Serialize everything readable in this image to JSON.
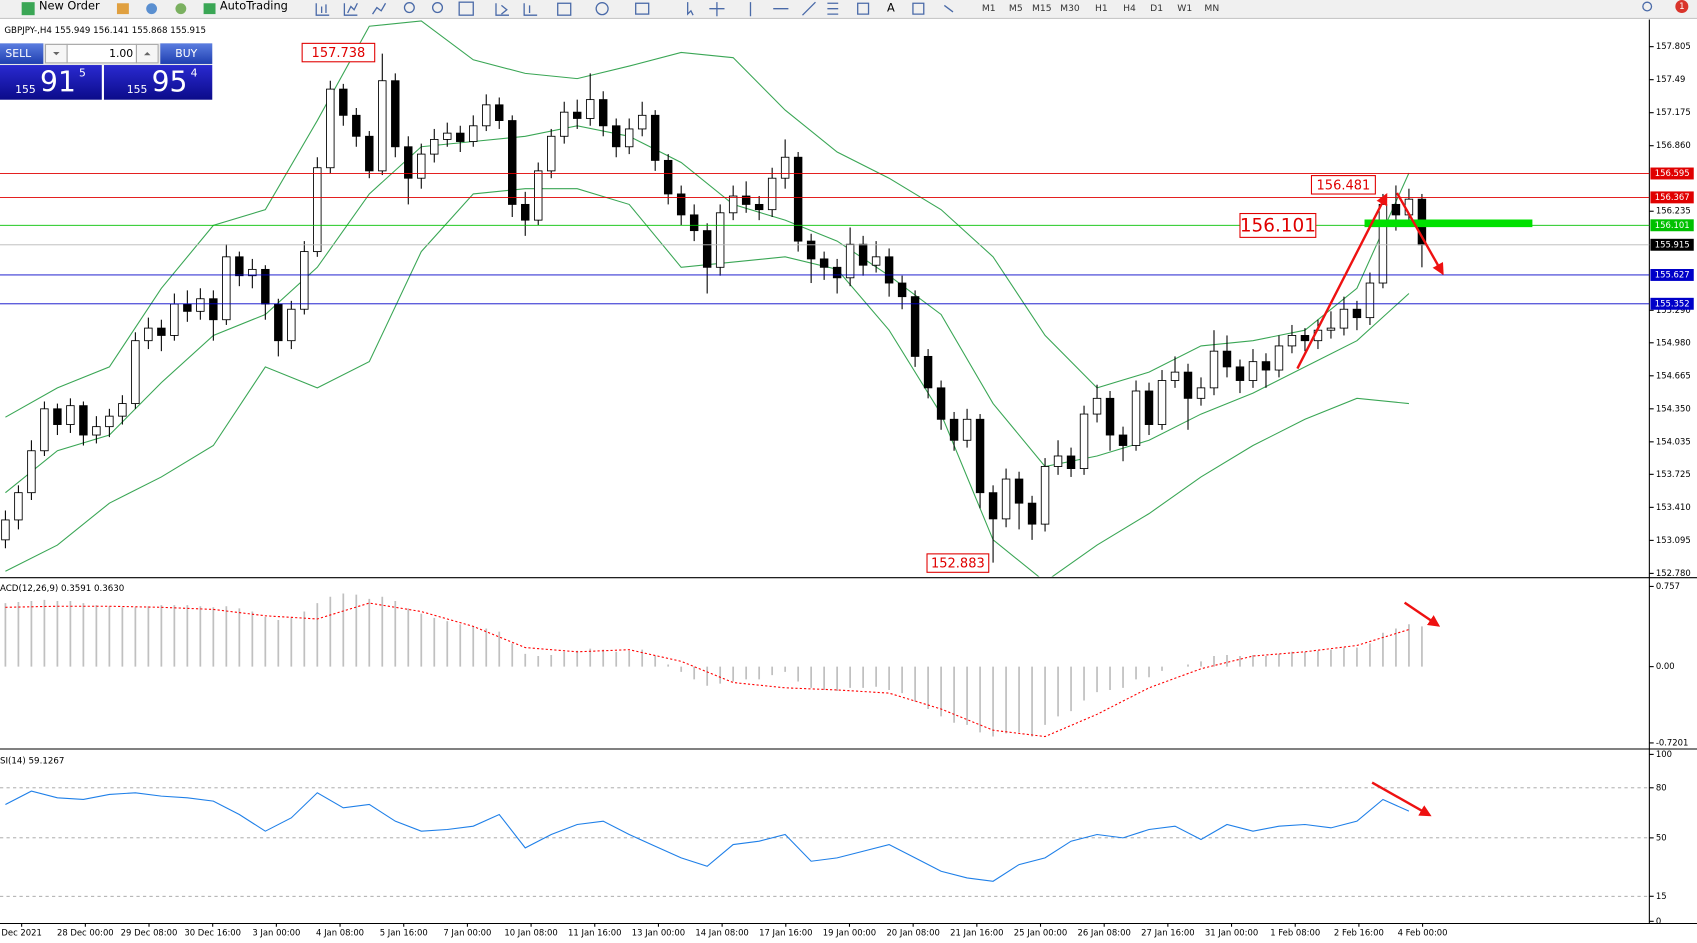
{
  "toolbar": {
    "new_order": "New Order",
    "autotrading": "AutoTrading",
    "text_tool": "A",
    "timeframes": [
      "M1",
      "M5",
      "M15",
      "M30",
      "H1",
      "H4",
      "D1",
      "W1",
      "MN"
    ],
    "notification_count": "1"
  },
  "trade_panel": {
    "sell": "SELL",
    "buy": "BUY",
    "lots": "1.00",
    "bid": {
      "big_figure": "155",
      "pips": "91",
      "fraction": "5"
    },
    "ask": {
      "big_figure": "155",
      "pips": "95",
      "fraction": "4"
    }
  },
  "chart": {
    "header": "GBPJPY-,H4 155.949 156.141 155.868 155.915",
    "ylim": [
      152.749,
      158.064
    ],
    "yticks": [
      157.805,
      157.49,
      157.175,
      {
        "value": 156.86,
        "label": "156.860"
      },
      156.235,
      {
        "value": 155.29,
        "label": "155.290"
      },
      {
        "value": 154.98,
        "label": "154.980"
      },
      154.665,
      {
        "value": 154.35,
        "label": "154.350"
      },
      154.035,
      153.725,
      {
        "value": 153.41,
        "label": "153.410"
      },
      153.095,
      {
        "value": 152.78,
        "label": "152.780"
      }
    ],
    "bull_color": "#ffffff",
    "bear_color": "#000000",
    "candles": {
      "open": [
        153.1,
        153.29,
        153.55,
        153.95,
        154.35,
        154.2,
        154.38,
        154.1,
        154.18,
        154.28,
        154.4,
        155.0,
        155.12,
        155.05,
        155.35,
        155.28,
        155.4,
        155.2,
        155.8,
        155.62,
        155.68,
        155.35,
        155.0,
        155.3,
        155.85,
        156.65,
        157.4,
        157.15,
        156.95,
        156.62,
        157.48,
        156.85,
        156.55,
        156.78,
        156.92,
        156.98,
        156.9,
        157.05,
        157.25,
        157.1,
        156.3,
        156.15,
        156.62,
        156.95,
        157.18,
        157.12,
        157.3,
        157.05,
        156.85,
        157.02,
        157.15,
        156.72,
        156.4,
        156.2,
        156.05,
        155.7,
        156.22,
        156.38,
        156.3,
        156.25,
        156.55,
        156.75,
        155.95,
        155.78,
        155.7,
        155.6,
        155.92,
        155.72,
        155.8,
        155.55,
        155.42,
        154.85,
        154.55,
        154.25,
        154.05,
        154.25,
        153.55,
        153.3,
        153.68,
        153.45,
        153.25,
        153.8,
        153.9,
        153.78,
        154.3,
        154.45,
        154.1,
        154.0,
        154.52,
        154.2,
        154.62,
        154.7,
        154.45,
        154.55,
        154.9,
        154.75,
        154.62,
        154.8,
        154.72,
        154.95,
        155.05,
        155.0,
        155.1,
        155.12,
        155.3,
        155.22,
        155.55,
        156.3,
        156.2,
        156.35
      ],
      "high": [
        153.38,
        153.62,
        154.05,
        154.42,
        154.4,
        154.45,
        154.42,
        154.28,
        154.35,
        154.48,
        155.08,
        155.22,
        155.2,
        155.45,
        155.48,
        155.5,
        155.48,
        155.92,
        155.85,
        155.78,
        155.72,
        155.4,
        155.38,
        155.95,
        156.75,
        157.48,
        157.45,
        157.22,
        157.0,
        157.738,
        157.55,
        156.95,
        156.88,
        157.02,
        157.08,
        157.05,
        157.15,
        157.35,
        157.32,
        157.15,
        156.42,
        156.7,
        157.02,
        157.28,
        157.3,
        157.55,
        157.38,
        157.12,
        157.12,
        157.28,
        157.2,
        156.78,
        156.48,
        156.3,
        156.12,
        156.3,
        156.48,
        156.52,
        156.38,
        156.65,
        156.92,
        156.8,
        156.02,
        155.85,
        155.78,
        156.08,
        156.0,
        155.95,
        155.88,
        155.62,
        155.48,
        154.92,
        154.62,
        154.32,
        154.35,
        154.3,
        153.62,
        153.78,
        153.75,
        153.52,
        153.88,
        154.05,
        153.98,
        154.38,
        154.58,
        154.52,
        154.18,
        154.62,
        154.6,
        154.72,
        154.85,
        154.78,
        154.65,
        155.1,
        155.05,
        154.82,
        154.92,
        154.88,
        155.05,
        155.15,
        155.12,
        155.2,
        155.28,
        155.42,
        155.38,
        155.65,
        156.4,
        156.481,
        156.45,
        156.4
      ],
      "low": [
        153.02,
        153.2,
        153.48,
        153.9,
        154.1,
        154.12,
        154.0,
        154.02,
        154.08,
        154.2,
        154.35,
        154.92,
        154.9,
        155.0,
        155.18,
        155.2,
        155.0,
        155.15,
        155.52,
        155.5,
        155.2,
        154.85,
        154.92,
        155.25,
        155.8,
        156.6,
        157.05,
        156.85,
        156.55,
        156.58,
        156.75,
        156.3,
        156.45,
        156.7,
        156.85,
        156.8,
        156.85,
        157.0,
        157.02,
        156.18,
        156.0,
        156.1,
        156.55,
        156.88,
        157.02,
        157.05,
        156.95,
        156.75,
        156.78,
        156.95,
        156.62,
        156.3,
        156.1,
        155.95,
        155.45,
        155.62,
        156.15,
        156.22,
        156.15,
        156.18,
        156.45,
        155.85,
        155.55,
        155.58,
        155.45,
        155.52,
        155.62,
        155.65,
        155.42,
        155.3,
        154.75,
        154.45,
        154.15,
        153.95,
        153.98,
        153.4,
        152.883,
        153.22,
        153.2,
        153.1,
        153.18,
        153.72,
        153.7,
        153.72,
        154.22,
        153.95,
        153.85,
        153.95,
        154.1,
        154.15,
        154.55,
        154.15,
        154.38,
        154.48,
        154.65,
        154.5,
        154.55,
        154.55,
        154.65,
        154.88,
        154.9,
        154.92,
        155.02,
        155.05,
        155.1,
        155.15,
        155.5,
        156.05,
        156.1,
        155.7
      ],
      "close": [
        153.29,
        153.55,
        153.95,
        154.35,
        154.2,
        154.38,
        154.1,
        154.18,
        154.28,
        154.4,
        155.0,
        155.12,
        155.05,
        155.35,
        155.28,
        155.4,
        155.2,
        155.8,
        155.62,
        155.68,
        155.35,
        155.0,
        155.3,
        155.85,
        156.65,
        157.4,
        157.15,
        156.95,
        156.62,
        157.48,
        156.85,
        156.55,
        156.78,
        156.92,
        156.98,
        156.9,
        157.05,
        157.25,
        157.1,
        156.3,
        156.15,
        156.62,
        156.95,
        157.18,
        157.12,
        157.3,
        157.05,
        156.85,
        157.02,
        157.15,
        156.72,
        156.4,
        156.2,
        156.05,
        155.7,
        156.22,
        156.38,
        156.3,
        156.25,
        156.55,
        156.75,
        155.95,
        155.78,
        155.7,
        155.6,
        155.92,
        155.72,
        155.8,
        155.55,
        155.42,
        154.85,
        154.55,
        154.25,
        154.05,
        154.25,
        153.55,
        153.3,
        153.68,
        153.45,
        153.25,
        153.8,
        153.9,
        153.78,
        154.3,
        154.45,
        154.1,
        154.0,
        154.52,
        154.2,
        154.62,
        154.7,
        154.45,
        154.55,
        154.9,
        154.75,
        154.62,
        154.8,
        154.72,
        154.95,
        155.05,
        155.0,
        155.1,
        155.12,
        155.3,
        155.22,
        155.55,
        156.3,
        156.2,
        156.35,
        155.915
      ]
    },
    "bands": {
      "color": "#3aa655",
      "x": [
        0,
        4,
        8,
        12,
        16,
        20,
        24,
        28,
        32,
        36,
        40,
        44,
        48,
        52,
        56,
        60,
        64,
        68,
        72,
        76,
        80,
        84,
        88,
        92,
        96,
        100,
        104,
        108
      ],
      "upper": [
        154.27,
        154.55,
        154.75,
        155.5,
        156.1,
        156.25,
        157.1,
        158.0,
        158.05,
        157.68,
        157.55,
        157.5,
        157.62,
        157.75,
        157.7,
        157.2,
        156.8,
        156.55,
        156.25,
        155.8,
        155.05,
        154.55,
        154.7,
        154.95,
        155.0,
        155.1,
        155.5,
        156.6
      ],
      "middle": [
        153.55,
        153.95,
        154.1,
        154.6,
        155.05,
        155.25,
        155.7,
        156.4,
        156.85,
        156.9,
        156.95,
        157.05,
        156.95,
        156.7,
        156.3,
        156.15,
        155.95,
        155.62,
        155.25,
        154.4,
        153.8,
        153.9,
        154.05,
        154.3,
        154.5,
        154.75,
        155.0,
        155.45
      ],
      "lower": [
        152.8,
        153.05,
        153.45,
        153.7,
        154.0,
        154.75,
        154.55,
        154.8,
        155.85,
        156.4,
        156.45,
        156.45,
        156.3,
        155.7,
        155.75,
        155.8,
        155.68,
        155.1,
        154.3,
        153.1,
        152.7,
        153.05,
        153.35,
        153.7,
        154.0,
        154.25,
        154.45,
        154.4
      ]
    },
    "price_lines": [
      {
        "value": 156.595,
        "color": "#e00000"
      },
      {
        "value": 156.367,
        "color": "#e00000"
      },
      {
        "value": 156.101,
        "color": "#00c000"
      },
      {
        "value": 155.915,
        "color": "#000000"
      },
      {
        "value": 155.627,
        "color": "#0000c8"
      },
      {
        "value": 155.352,
        "color": "#0000c8"
      }
    ],
    "annotations": [
      157.738,
      152.883,
      156.481,
      156.101
    ],
    "x_labels": [
      "Dec 2021",
      "28 Dec 00:00",
      "29 Dec 08:00",
      "30 Dec 16:00",
      "3 Jan 00:00",
      "4 Jan 08:00",
      "5 Jan 16:00",
      "7 Jan 00:00",
      "10 Jan 08:00",
      "11 Jan 16:00",
      "13 Jan 00:00",
      "14 Jan 08:00",
      "17 Jan 16:00",
      "19 Jan 00:00",
      "20 Jan 08:00",
      "21 Jan 16:00",
      "25 Jan 00:00",
      "26 Jan 08:00",
      "27 Jan 16:00",
      "31 Jan 00:00",
      "1 Feb 08:00",
      "2 Feb 16:00",
      "4 Feb 00:00"
    ]
  },
  "macd": {
    "header": "ACD(12,26,9) 0.3591 0.3630",
    "ylim": [
      -0.767,
      0.829
    ],
    "yticks": [
      0.757,
      {
        "value": 0,
        "label": "0.00"
      },
      -0.7201
    ],
    "histogram_color": "#c0c0c0",
    "histogram": [
      0.6,
      0.61,
      0.62,
      0.63,
      0.62,
      0.62,
      0.6,
      0.58,
      0.57,
      0.56,
      0.56,
      0.57,
      0.58,
      0.58,
      0.58,
      0.57,
      0.56,
      0.57,
      0.55,
      0.52,
      0.47,
      0.44,
      0.46,
      0.52,
      0.6,
      0.66,
      0.69,
      0.68,
      0.64,
      0.66,
      0.62,
      0.55,
      0.5,
      0.46,
      0.43,
      0.4,
      0.38,
      0.36,
      0.33,
      0.22,
      0.12,
      0.1,
      0.11,
      0.14,
      0.15,
      0.17,
      0.16,
      0.14,
      0.15,
      0.16,
      0.1,
      0.02,
      -0.05,
      -0.12,
      -0.18,
      -0.16,
      -0.14,
      -0.12,
      -0.12,
      -0.08,
      -0.05,
      -0.14,
      -0.2,
      -0.22,
      -0.23,
      -0.2,
      -0.2,
      -0.19,
      -0.22,
      -0.25,
      -0.33,
      -0.4,
      -0.47,
      -0.53,
      -0.55,
      -0.62,
      -0.66,
      -0.63,
      -0.62,
      -0.66,
      -0.55,
      -0.47,
      -0.42,
      -0.32,
      -0.24,
      -0.22,
      -0.2,
      -0.12,
      -0.1,
      -0.04,
      0.0,
      0.02,
      0.05,
      0.1,
      0.11,
      0.1,
      0.11,
      0.1,
      0.12,
      0.14,
      0.14,
      0.15,
      0.16,
      0.18,
      0.18,
      0.22,
      0.32,
      0.36,
      0.4,
      0.38
    ],
    "signal": {
      "color": "#ff0000",
      "x": [
        0,
        4,
        8,
        12,
        16,
        20,
        24,
        28,
        32,
        36,
        40,
        44,
        48,
        52,
        56,
        60,
        64,
        68,
        72,
        76,
        80,
        84,
        88,
        92,
        96,
        100,
        104,
        108
      ],
      "values": [
        0.56,
        0.57,
        0.57,
        0.56,
        0.54,
        0.48,
        0.45,
        0.6,
        0.52,
        0.38,
        0.18,
        0.14,
        0.16,
        0.05,
        -0.15,
        -0.2,
        -0.22,
        -0.25,
        -0.4,
        -0.6,
        -0.66,
        -0.45,
        -0.2,
        -0.02,
        0.1,
        0.14,
        0.2,
        0.35
      ]
    }
  },
  "rsi": {
    "header": "SI(14) 59.1267",
    "ylim": [
      0,
      100
    ],
    "yticks": [
      100,
      80,
      50,
      15,
      0
    ],
    "color": "#1e7fe8",
    "x": [
      0,
      2,
      4,
      6,
      8,
      10,
      12,
      14,
      16,
      18,
      20,
      22,
      24,
      26,
      28,
      30,
      32,
      34,
      36,
      38,
      40,
      42,
      44,
      46,
      48,
      50,
      52,
      54,
      56,
      58,
      60,
      62,
      64,
      66,
      68,
      70,
      72,
      74,
      76,
      78,
      80,
      82,
      84,
      86,
      88,
      90,
      92,
      94,
      96,
      98,
      100,
      102,
      104,
      106,
      108
    ],
    "values": [
      70,
      78,
      74,
      73,
      76,
      77,
      75,
      74,
      72,
      64,
      54,
      62,
      77,
      68,
      70,
      60,
      54,
      55,
      57,
      64,
      44,
      52,
      58,
      60,
      52,
      45,
      38,
      33,
      46,
      48,
      52,
      36,
      38,
      42,
      46,
      38,
      30,
      26,
      24,
      34,
      38,
      48,
      52,
      50,
      55,
      57,
      49,
      58,
      54,
      57,
      58,
      56,
      60,
      73,
      66
    ]
  }
}
